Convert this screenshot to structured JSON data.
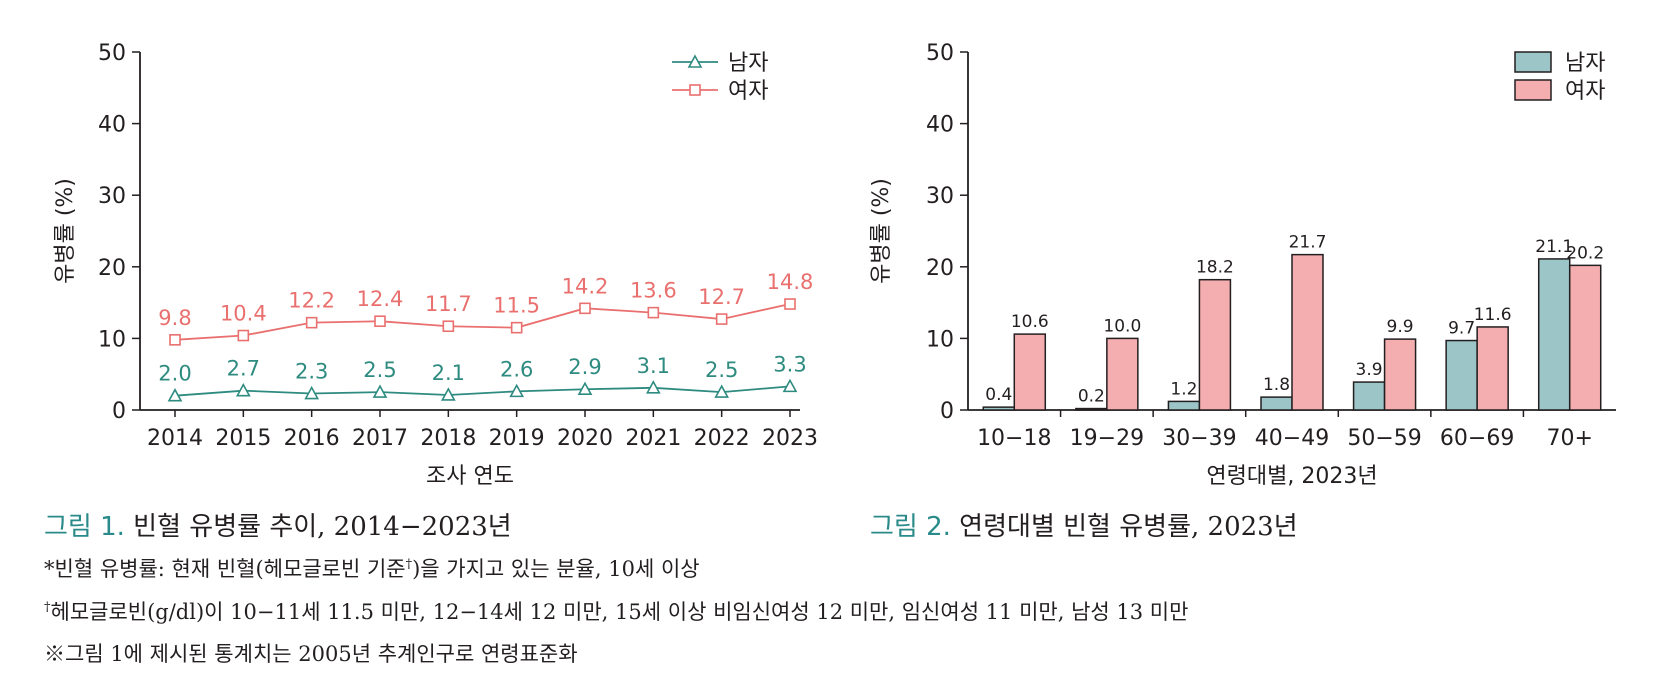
{
  "colors": {
    "male_line": "#2e8b80",
    "female_line": "#e9706f",
    "male_bar": "#9cc5c8",
    "female_bar": "#f4aeaf",
    "caption_accent": "#2a8a8a",
    "axis": "#231f20"
  },
  "chart_data": [
    {
      "type": "line",
      "title": "",
      "xlabel": "조사 연도",
      "ylabel": "유병률 (%)",
      "ylim": [
        0,
        50
      ],
      "yticks": [
        "0",
        "10",
        "20",
        "30",
        "40",
        "50"
      ],
      "categories": [
        "2014",
        "2015",
        "2016",
        "2017",
        "2018",
        "2019",
        "2020",
        "2021",
        "2022",
        "2023"
      ],
      "series": [
        {
          "name": "남자",
          "marker": "triangle",
          "values": [
            2.0,
            2.7,
            2.3,
            2.5,
            2.1,
            2.6,
            2.9,
            3.1,
            2.5,
            3.3
          ],
          "labels": [
            "2.0",
            "2.7",
            "2.3",
            "2.5",
            "2.1",
            "2.6",
            "2.9",
            "3.1",
            "2.5",
            "3.3"
          ]
        },
        {
          "name": "여자",
          "marker": "square",
          "values": [
            9.8,
            10.4,
            12.2,
            12.4,
            11.7,
            11.5,
            14.2,
            13.6,
            12.7,
            14.8
          ],
          "labels": [
            "9.8",
            "10.4",
            "12.2",
            "12.4",
            "11.7",
            "11.5",
            "14.2",
            "13.6",
            "12.7",
            "14.8"
          ]
        }
      ],
      "grid": false,
      "legend": "top-right"
    },
    {
      "type": "bar",
      "title": "",
      "xlabel": "연령대별, 2023년",
      "ylabel": "유병률 (%)",
      "ylim": [
        0,
        50
      ],
      "yticks": [
        "0",
        "10",
        "20",
        "30",
        "40",
        "50"
      ],
      "categories": [
        "10−18",
        "19−29",
        "30−39",
        "40−49",
        "50−59",
        "60−69",
        "70+"
      ],
      "series": [
        {
          "name": "남자",
          "values": [
            0.4,
            0.2,
            1.2,
            1.8,
            3.9,
            9.7,
            21.1
          ],
          "labels": [
            "0.4",
            "0.2",
            "1.2",
            "1.8",
            "3.9",
            "9.7",
            "21.1"
          ]
        },
        {
          "name": "여자",
          "values": [
            10.6,
            10.0,
            18.2,
            21.7,
            9.9,
            11.6,
            20.2
          ],
          "labels": [
            "10.6",
            "10.0",
            "18.2",
            "21.7",
            "9.9",
            "11.6",
            "20.2"
          ]
        }
      ],
      "grid": false,
      "legend": "top-right"
    }
  ],
  "captions": {
    "fig1_num": "그림 1.",
    "fig1_text": " 빈혈 유병률 추이, 2014−2023년",
    "fig2_num": "그림 2.",
    "fig2_text": " 연령대별 빈혈 유병률, 2023년"
  },
  "notes": {
    "note1_pre": "*빈혈 유병률: 현재 빈혈(헤모글로빈 기준",
    "note1_sup": "†",
    "note1_post": ")을 가지고 있는 분율, 10세 이상",
    "note2_sup": "†",
    "note2_text": "헤모글로빈(g/dl)이 10−11세 11.5 미만, 12−14세 12 미만, 15세 이상 비임신여성 12 미만, 임신여성 11 미만, 남성 13 미만",
    "note3": "※그림 1에 제시된 통계치는 2005년 추계인구로 연령표준화"
  }
}
